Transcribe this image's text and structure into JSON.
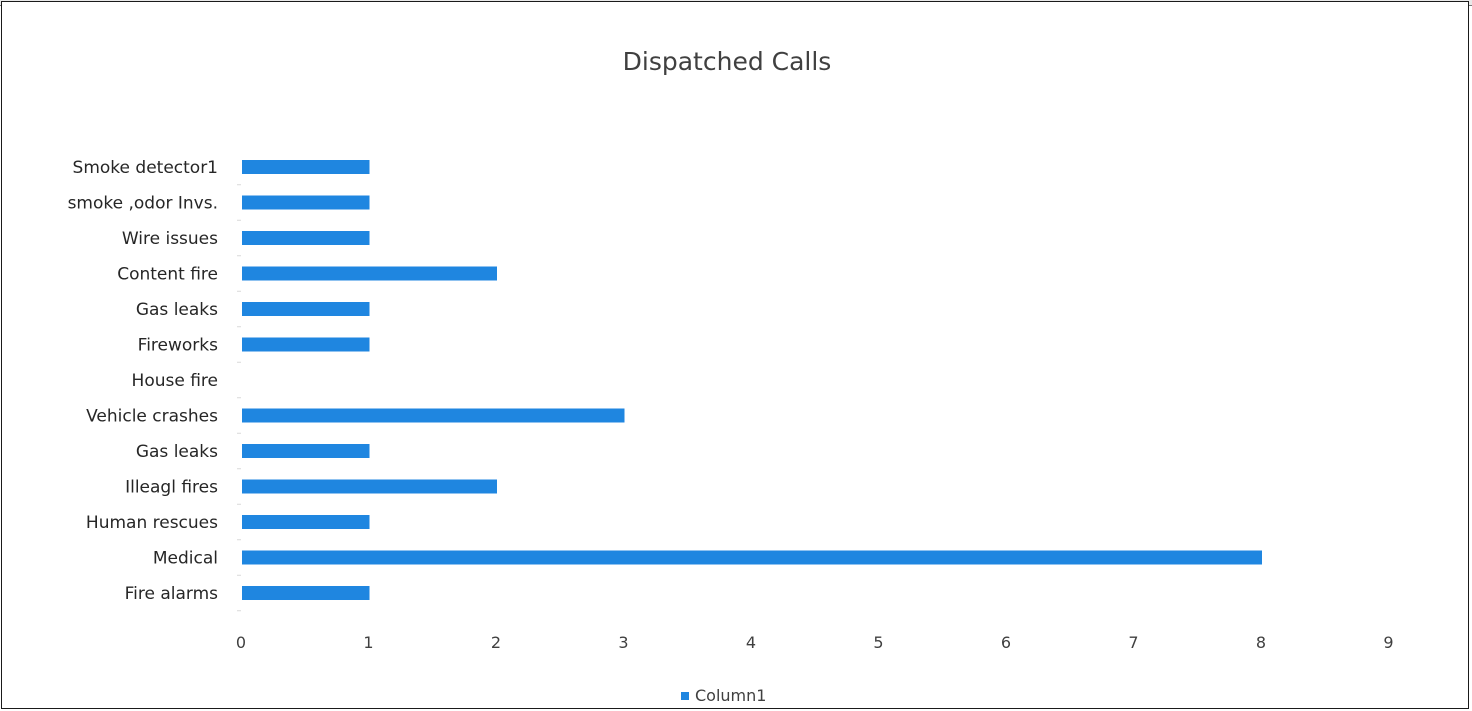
{
  "chart_data": {
    "type": "bar",
    "orientation": "horizontal",
    "title": "Dispatched Calls",
    "categories": [
      "Fire alarms",
      "Medical",
      "Human rescues",
      "Illeagl fires",
      "Gas leaks",
      "Vehicle crashes",
      "House fire",
      "Fireworks",
      "Gas leaks",
      "Content fire",
      "Wire issues",
      "smoke ,odor Invs.",
      "Smoke detector1"
    ],
    "series": [
      {
        "name": "Column1",
        "values": [
          1,
          8,
          1,
          2,
          1,
          3,
          0,
          1,
          1,
          2,
          1,
          1,
          1
        ],
        "color": "#1f86e0"
      }
    ],
    "xlim": [
      0,
      9
    ],
    "xticks": [
      "0",
      "1",
      "2",
      "3",
      "4",
      "5",
      "6",
      "7",
      "8",
      "9"
    ],
    "grid": false,
    "legend": {
      "position": "bottom",
      "marker_color": "#1f86e0"
    }
  }
}
